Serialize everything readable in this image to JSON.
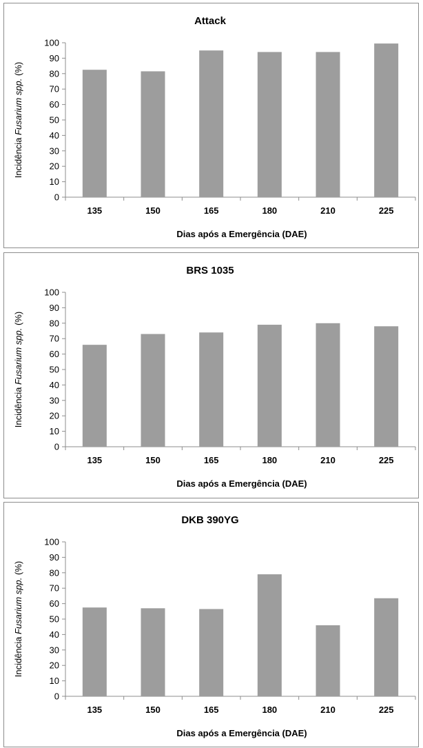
{
  "chart_data": [
    {
      "type": "bar",
      "title": "Attack",
      "xlabel": "Dias após a Emergência (DAE)",
      "ylabel_prefix": "Incidência ",
      "ylabel_italic": "Fusarium spp.",
      "ylabel_suffix": " (%)",
      "categories": [
        "135",
        "150",
        "165",
        "180",
        "210",
        "225"
      ],
      "values": [
        82.5,
        81.5,
        95,
        94,
        94,
        99.5
      ],
      "ylim": [
        0,
        100
      ],
      "yticks": [
        "0",
        "10",
        "20",
        "30",
        "40",
        "50",
        "60",
        "70",
        "80",
        "90",
        "100"
      ],
      "bar_color": "#9d9d9d",
      "grid": false
    },
    {
      "type": "bar",
      "title": "BRS 1035",
      "xlabel": "Dias após a Emergência (DAE)",
      "ylabel_prefix": "Incidência ",
      "ylabel_italic": "Fusarium spp.",
      "ylabel_suffix": " (%)",
      "categories": [
        "135",
        "150",
        "165",
        "180",
        "210",
        "225"
      ],
      "values": [
        66,
        73,
        74,
        79,
        80,
        78
      ],
      "ylim": [
        0,
        100
      ],
      "yticks": [
        "0",
        "10",
        "20",
        "30",
        "40",
        "50",
        "60",
        "70",
        "80",
        "90",
        "100"
      ],
      "bar_color": "#9d9d9d",
      "grid": false
    },
    {
      "type": "bar",
      "title": "DKB 390YG",
      "xlabel": "Dias após a Emergência (DAE)",
      "ylabel_prefix": "Incidência ",
      "ylabel_italic": "Fusarium spp.",
      "ylabel_suffix": " (%)",
      "categories": [
        "135",
        "150",
        "165",
        "180",
        "210",
        "225"
      ],
      "values": [
        57.5,
        57,
        56.5,
        79,
        46,
        63.5
      ],
      "ylim": [
        0,
        100
      ],
      "yticks": [
        "0",
        "10",
        "20",
        "30",
        "40",
        "50",
        "60",
        "70",
        "80",
        "90",
        "100"
      ],
      "bar_color": "#9d9d9d",
      "grid": false
    }
  ]
}
